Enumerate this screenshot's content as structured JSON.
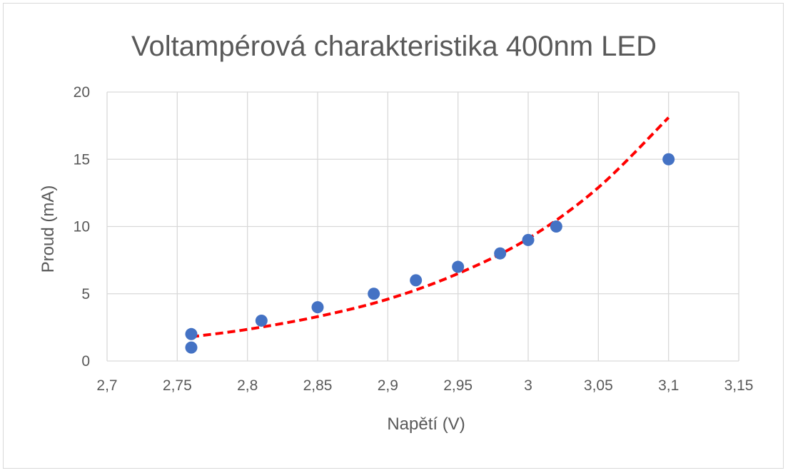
{
  "chart_data": {
    "type": "scatter",
    "title": "Voltampérová charakteristika 400nm LED",
    "xlabel": "Napětí (V)",
    "ylabel": "Proud (mA)",
    "xlim": [
      2.7,
      3.15
    ],
    "ylim": [
      0,
      20
    ],
    "x_ticks": [
      "2,7",
      "2,75",
      "2,8",
      "2,85",
      "2,9",
      "2,95",
      "3",
      "3,05",
      "3,1",
      "3,15"
    ],
    "y_ticks": [
      "0",
      "5",
      "10",
      "15",
      "20"
    ],
    "grid": true,
    "legend": "none",
    "series": [
      {
        "points": [
          {
            "x": 2.76,
            "y": 1
          },
          {
            "x": 2.76,
            "y": 2
          },
          {
            "x": 2.81,
            "y": 3
          },
          {
            "x": 2.85,
            "y": 4
          },
          {
            "x": 2.89,
            "y": 5
          },
          {
            "x": 2.92,
            "y": 6
          },
          {
            "x": 2.95,
            "y": 7
          },
          {
            "x": 2.98,
            "y": 8
          },
          {
            "x": 3.0,
            "y": 9
          },
          {
            "x": 3.02,
            "y": 10
          },
          {
            "x": 3.1,
            "y": 15
          }
        ],
        "color": "#4472c4"
      }
    ],
    "trendline": {
      "type": "exponential",
      "color": "#ff0000",
      "style": "dashed",
      "points": [
        {
          "x": 2.76,
          "y": 1.8
        },
        {
          "x": 2.8,
          "y": 2.35
        },
        {
          "x": 2.85,
          "y": 3.3
        },
        {
          "x": 2.9,
          "y": 4.6
        },
        {
          "x": 2.95,
          "y": 6.5
        },
        {
          "x": 3.0,
          "y": 9.1
        },
        {
          "x": 3.05,
          "y": 12.9
        },
        {
          "x": 3.1,
          "y": 18.1
        }
      ]
    }
  },
  "colors": {
    "marker": "#4472c4",
    "trendline": "#ff0000",
    "grid": "#d9d9d9",
    "text": "#595959"
  }
}
